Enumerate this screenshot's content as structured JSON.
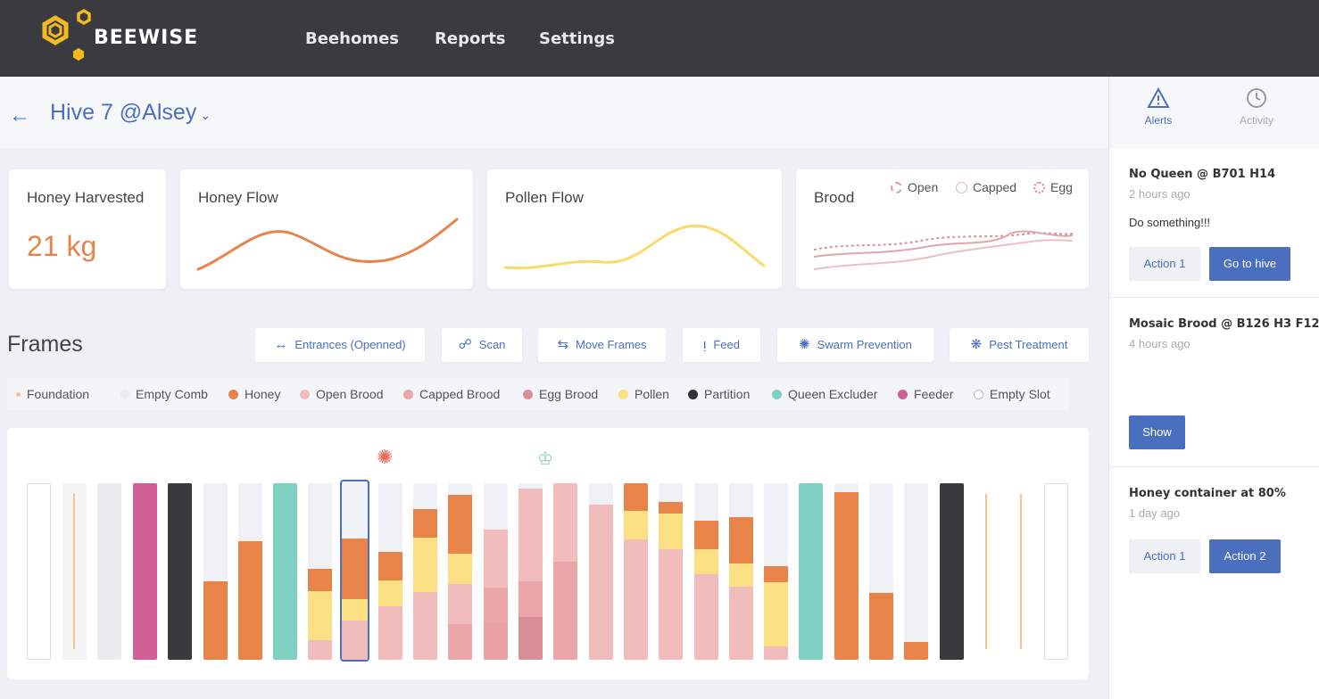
{
  "header": {
    "brand": "BEEWISE",
    "nav": [
      "Beehomes",
      "Reports",
      "Settings"
    ]
  },
  "hive": {
    "title": "Hive 7 @Alsey"
  },
  "right_tabs": {
    "alerts": "Alerts",
    "activity": "Activity"
  },
  "alerts": [
    {
      "title": "No Queen @ B701 H14",
      "time": "2 hours ago",
      "body": "Do something!!!",
      "action1": "Action 1",
      "action2": "Go to hive"
    },
    {
      "title": "Mosaic Brood @ B126 H3 F12",
      "time": "4 hours ago",
      "body": "",
      "action1": "Show"
    },
    {
      "title": "Honey container at 80%",
      "time": "1 day ago",
      "body": "",
      "action1": "Action 1",
      "action2": "Action 2"
    }
  ],
  "stats": {
    "honey_harvested_label": "Honey Harvested",
    "honey_harvested_value": "21 kg",
    "honey_flow_label": "Honey Flow",
    "pollen_flow_label": "Pollen Flow",
    "brood_label": "Brood",
    "brood_legend": [
      "Open",
      "Capped",
      "Egg"
    ]
  },
  "frames_section": {
    "title": "Frames",
    "actions": [
      "Entrances (Openned)",
      "Scan",
      "Move Frames",
      "Feed",
      "Swarm Prevention",
      "Pest Treatment"
    ]
  },
  "legend": [
    {
      "label": "Foundation",
      "color": "#f5c38a"
    },
    {
      "label": "Empty Comb",
      "color": "#ececef"
    },
    {
      "label": "Honey",
      "color": "#e8844a"
    },
    {
      "label": "Open Brood",
      "color": "#f2bcbc"
    },
    {
      "label": "Capped Brood",
      "color": "#eaa6a8"
    },
    {
      "label": "Egg Brood",
      "color": "#d98f98"
    },
    {
      "label": "Pollen",
      "color": "#fbe083"
    },
    {
      "label": "Partition",
      "color": "#333333"
    },
    {
      "label": "Queen Excluder",
      "color": "#7fcfc3"
    },
    {
      "label": "Feeder",
      "color": "#cf5f96"
    },
    {
      "label": "Empty Slot",
      "color": "#ffffff"
    }
  ],
  "colors": {
    "honey": "#e8844a",
    "pollen": "#fbe083",
    "open": "#f2bcbc",
    "capped": "#eaa6a8",
    "egg": "#d98f98",
    "empty": "#ececef",
    "partition": "#3a3a3c",
    "excluder": "#7fcfc3",
    "feeder": "#cf5f96",
    "foundation": "#f5c38a",
    "accent": "#4a6fbf"
  }
}
